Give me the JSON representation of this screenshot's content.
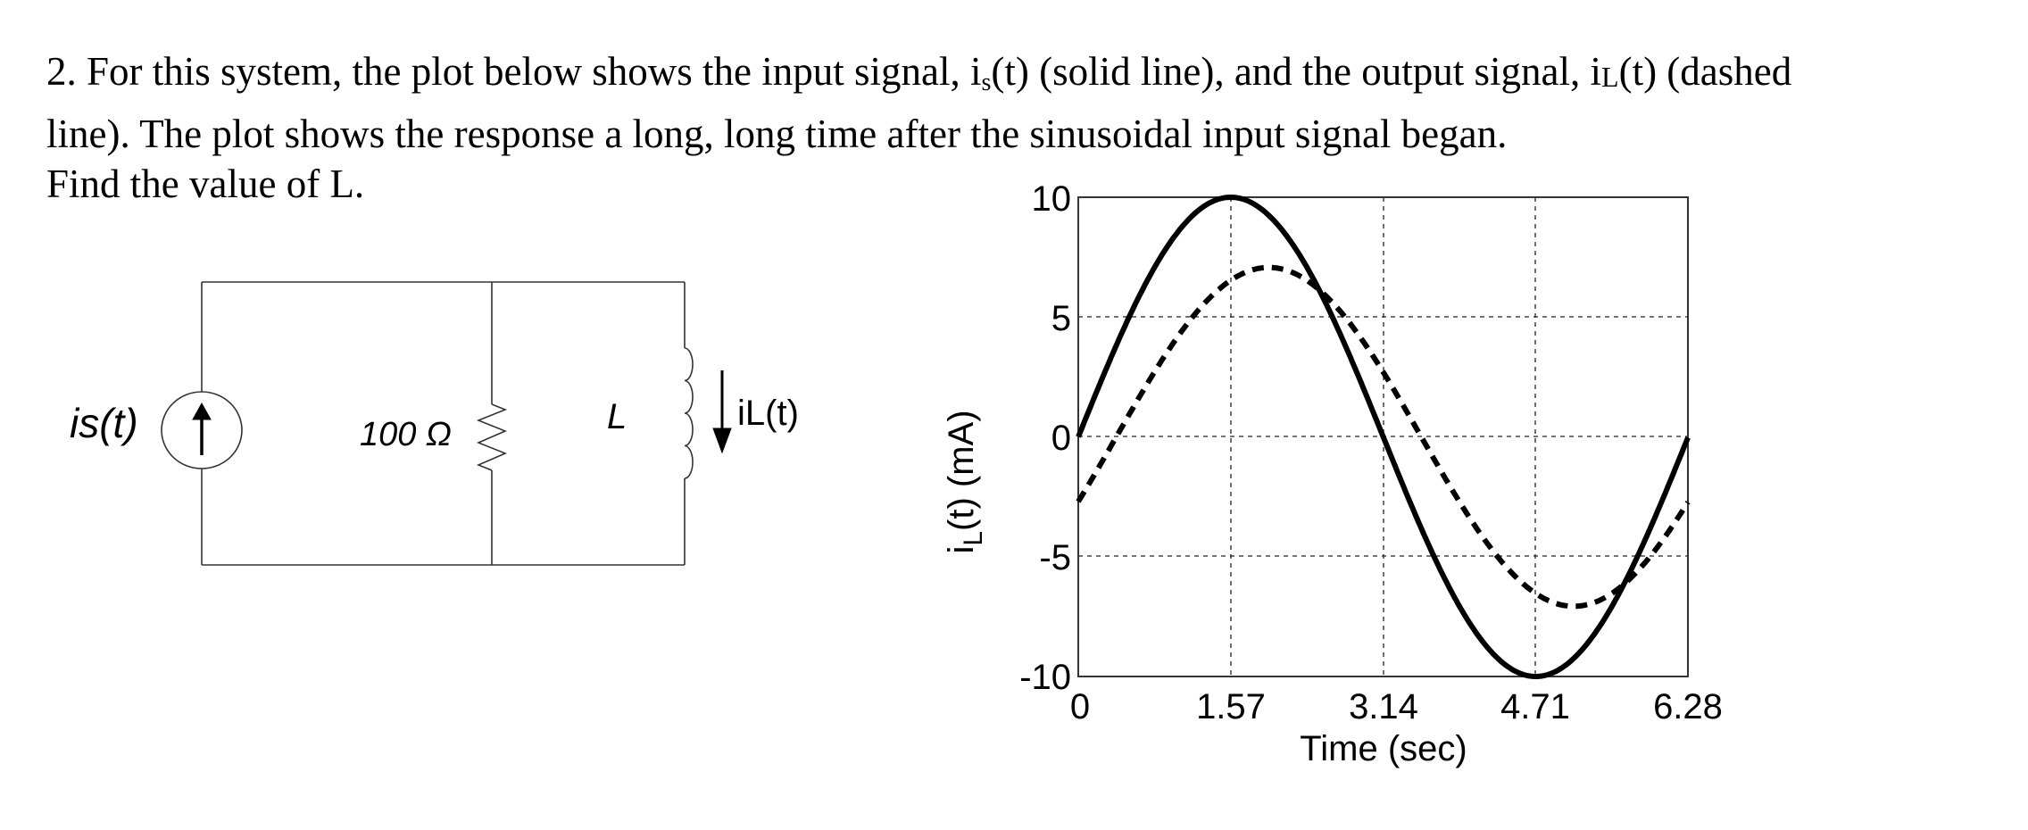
{
  "problem": {
    "number": "2.",
    "line1_a": "For this system, the plot below shows the input signal, i",
    "line1_sub_s": "s",
    "line1_b": "(t) (solid line), and the output signal, i",
    "line1_sub_L": "L",
    "line1_c": "(t) (dashed",
    "line2": "line).  The plot shows the response a long, long time after the sinusoidal input signal began.",
    "line3": "Find the value of  L."
  },
  "circuit": {
    "source_label": "is(t)",
    "resistor_label": "100 Ω",
    "inductor_label": "L",
    "current_label": "iL(t)",
    "source_icon": "current-source-up-arrow-icon",
    "resistor_icon": "resistor-zigzag-icon",
    "inductor_icon": "inductor-coil-icon"
  },
  "chart_data": {
    "type": "line",
    "title": "",
    "xlabel": "Time (sec)",
    "ylabel": "i_L(t) (mA)",
    "xlim": [
      0,
      6.28
    ],
    "ylim": [
      -10,
      10
    ],
    "xticks": [
      "0",
      "1.57",
      "3.14",
      "4.71",
      "6.28"
    ],
    "yticks": [
      "10",
      "5",
      "0",
      "-5",
      "-10"
    ],
    "grid": true,
    "series": [
      {
        "name": "is(t) input (solid)",
        "style": "solid",
        "x": [
          0,
          0.785,
          1.57,
          2.355,
          3.14,
          3.925,
          4.71,
          5.495,
          6.28
        ],
        "values": [
          0,
          7.07,
          10,
          7.07,
          0,
          -7.07,
          -10,
          -7.07,
          0
        ]
      },
      {
        "name": "iL(t) output (dashed)",
        "style": "dashed",
        "x": [
          0,
          0.785,
          1.57,
          1.96,
          2.355,
          3.14,
          3.925,
          4.71,
          5.1,
          5.495,
          6.28
        ],
        "values": [
          -2.7,
          2.8,
          6.5,
          7.07,
          6.5,
          2.7,
          -2.8,
          -6.5,
          -7.07,
          -6.5,
          -2.7
        ]
      }
    ]
  }
}
